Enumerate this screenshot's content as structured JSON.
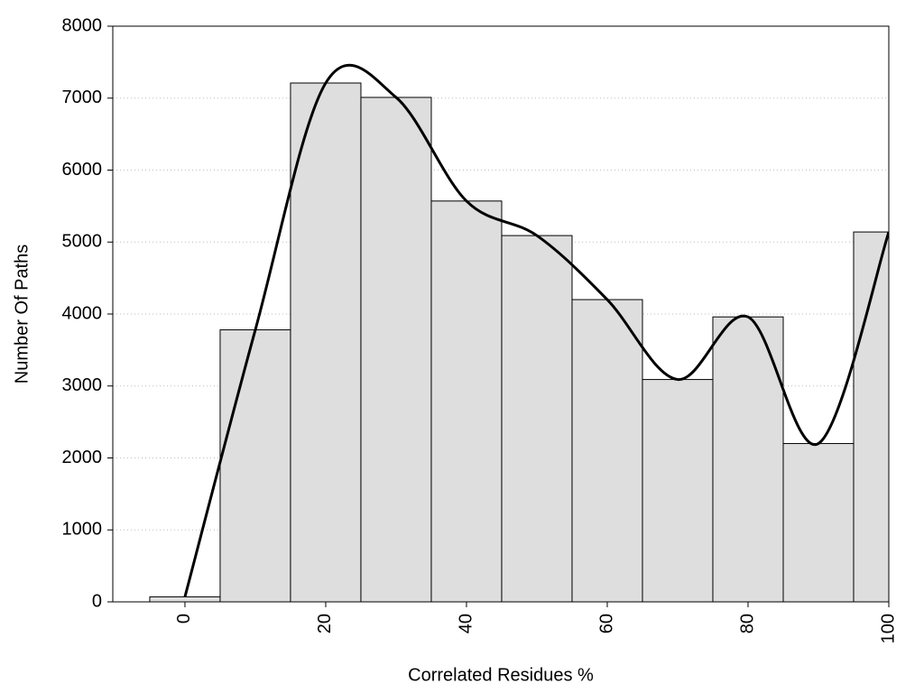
{
  "chart_data": {
    "type": "bar",
    "x_label": "Correlated Residues %",
    "y_label": "Number Of Paths",
    "x": [
      0,
      10,
      20,
      30,
      40,
      50,
      60,
      70,
      80,
      90,
      100
    ],
    "values": [
      70,
      3780,
      7210,
      7010,
      5570,
      5090,
      4200,
      3090,
      3960,
      2200,
      5140
    ],
    "color": "#dedede",
    "line_color": "#000000",
    "smooth_line": true,
    "xlim": [
      -10.25,
      100
    ],
    "xticks": [
      0,
      20,
      40,
      60,
      80,
      100
    ],
    "ylim": [
      0,
      8000
    ],
    "yticks": [
      0,
      1000,
      2000,
      3000,
      4000,
      5000,
      6000,
      7000,
      8000
    ],
    "grid": true
  }
}
